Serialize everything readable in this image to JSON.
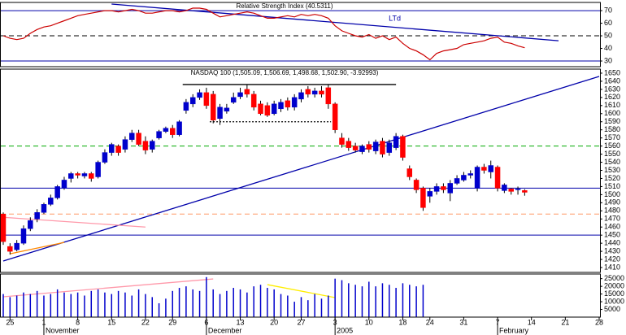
{
  "chart_data": [
    {
      "type": "line",
      "title": "Relative Strength Index (40.5311)",
      "color": "#cc0000",
      "values": [
        50,
        48,
        47,
        48,
        52,
        55,
        57,
        58,
        60,
        62,
        64,
        66,
        67,
        68,
        69,
        70,
        70,
        69,
        70,
        71,
        70,
        68,
        68,
        69,
        70,
        70,
        69,
        70,
        72,
        72,
        71,
        68,
        65,
        66,
        67,
        68,
        69,
        68,
        66,
        64,
        64,
        65,
        66,
        65,
        67,
        66,
        67,
        66,
        64,
        58,
        54,
        52,
        50,
        49,
        51,
        48,
        50,
        47,
        49,
        44,
        40,
        38,
        35,
        31,
        36,
        38,
        39,
        40,
        43,
        44,
        45,
        46,
        48,
        49,
        45,
        44,
        42,
        40.5311,
        null,
        null,
        null,
        null,
        null,
        null,
        null,
        null,
        null,
        null,
        null
      ],
      "ylim": [
        25.5,
        76.5
      ],
      "yticks": [
        30,
        40,
        50,
        60,
        70
      ],
      "hlines": [
        {
          "value": 70,
          "color": "#0000aa",
          "dash": "solid"
        },
        {
          "value": 50,
          "color": "#000000",
          "dash": "dashed"
        },
        {
          "value": 30,
          "color": "#0000aa",
          "dash": "solid"
        }
      ],
      "trendlines": [
        {
          "x": [
            16,
            82
          ],
          "y": [
            75.2,
            46.1
          ],
          "color": "#0000aa",
          "label": "LTd"
        }
      ]
    },
    {
      "type": "candlestick",
      "title": "NASDAQ 100 (1,505.09, 1,506.69, 1,498.68, 1,502.90, -3.92993)",
      "categories": [
        null,
        "25",
        null,
        null,
        null,
        null,
        "1",
        null,
        null,
        null,
        null,
        "8",
        null,
        null,
        null,
        null,
        "15",
        null,
        null,
        null,
        null,
        "22",
        null,
        null,
        null,
        "29",
        null,
        null,
        null,
        null,
        "6",
        null,
        null,
        null,
        null,
        "13",
        null,
        null,
        null,
        null,
        "20",
        null,
        null,
        null,
        "27",
        null,
        null,
        null,
        null,
        "3",
        null,
        null,
        null,
        null,
        "10",
        null,
        null,
        null,
        null,
        "18",
        null,
        null,
        null,
        "24",
        null,
        null,
        null,
        null,
        "31",
        null,
        null,
        null,
        null,
        "7",
        null,
        null,
        null,
        null,
        "14",
        null,
        null,
        null,
        null,
        "21",
        null,
        null,
        null,
        null,
        "28"
      ],
      "month_ticks": [
        {
          "value": 6,
          "label": "November"
        },
        {
          "value": 30,
          "label": "December"
        },
        {
          "value": 49,
          "label": "2005"
        },
        {
          "value": 73,
          "label": "February"
        }
      ],
      "open": [
        1476,
        1436,
        1432,
        1440,
        1458,
        1470,
        1478,
        1488,
        1496,
        1508,
        1520,
        1526,
        1523,
        1526,
        1522,
        1540,
        1552,
        1560,
        1556,
        1568,
        1576,
        1566,
        1556,
        1570,
        1578,
        1582,
        1574,
        1604,
        1612,
        1620,
        1626,
        1624,
        1594,
        1603,
        1614,
        1621,
        1630,
        1624,
        1612,
        1610,
        1600,
        1606,
        1616,
        1608,
        1618,
        1630,
        1624,
        1628,
        1632,
        1612,
        1570,
        1566,
        1560,
        1553,
        1562,
        1554,
        1566,
        1552,
        1558,
        1572,
        1532,
        1518,
        1508,
        1498,
        1504,
        1510,
        1502,
        1514,
        1518,
        1524,
        1508,
        1534,
        1528,
        1534,
        1505,
        1507,
        1506,
        1505.09,
        null,
        null,
        null,
        null,
        null,
        null,
        null,
        null,
        null,
        null,
        null
      ],
      "high": [
        1478,
        1440,
        1444,
        1462,
        1472,
        1482,
        1490,
        1500,
        1512,
        1522,
        1528,
        1528,
        1528,
        1528,
        1542,
        1556,
        1564,
        1562,
        1572,
        1580,
        1580,
        1572,
        1568,
        1580,
        1584,
        1586,
        1592,
        1618,
        1624,
        1630,
        1632,
        1628,
        1612,
        1612,
        1626,
        1632,
        1636,
        1628,
        1616,
        1614,
        1616,
        1618,
        1620,
        1624,
        1630,
        1634,
        1632,
        1634,
        1636,
        1614,
        1576,
        1570,
        1564,
        1562,
        1566,
        1568,
        1570,
        1568,
        1576,
        1574,
        1536,
        1520,
        1510,
        1508,
        1514,
        1514,
        1518,
        1524,
        1528,
        1530,
        1536,
        1538,
        1542,
        1536,
        1514,
        1508,
        1510,
        1506.69,
        null,
        null,
        null,
        null,
        null,
        null,
        null,
        null,
        null,
        null,
        null
      ],
      "low": [
        1438,
        1426,
        1430,
        1438,
        1455,
        1466,
        1476,
        1486,
        1494,
        1506,
        1515,
        1520,
        1520,
        1516,
        1520,
        1538,
        1548,
        1548,
        1552,
        1565,
        1560,
        1550,
        1552,
        1568,
        1576,
        1570,
        1572,
        1600,
        1608,
        1617,
        1606,
        1588,
        1586,
        1600,
        1612,
        1618,
        1620,
        1604,
        1598,
        1596,
        1598,
        1602,
        1604,
        1604,
        1614,
        1620,
        1620,
        1620,
        1606,
        1576,
        1558,
        1554,
        1552,
        1550,
        1552,
        1550,
        1546,
        1548,
        1555,
        1542,
        1518,
        1502,
        1480,
        1490,
        1500,
        1502,
        1492,
        1512,
        1516,
        1520,
        1504,
        1526,
        1520,
        1504,
        1502,
        1500,
        1500,
        1498.68,
        null,
        null,
        null,
        null,
        null,
        null,
        null,
        null,
        null,
        null,
        null
      ],
      "close": [
        1442,
        1430,
        1440,
        1458,
        1468,
        1478,
        1488,
        1496,
        1510,
        1518,
        1526,
        1524,
        1526,
        1520,
        1540,
        1552,
        1562,
        1552,
        1568,
        1576,
        1562,
        1555,
        1566,
        1578,
        1582,
        1574,
        1590,
        1614,
        1620,
        1626,
        1610,
        1592,
        1608,
        1607,
        1620,
        1626,
        1624,
        1608,
        1600,
        1598,
        1612,
        1614,
        1608,
        1620,
        1626,
        1624,
        1628,
        1624,
        1612,
        1580,
        1562,
        1558,
        1555,
        1560,
        1556,
        1565,
        1550,
        1564,
        1572,
        1546,
        1522,
        1506,
        1484,
        1504,
        1510,
        1506,
        1514,
        1520,
        1524,
        1526,
        1534,
        1530,
        1536,
        1508,
        1512,
        1504,
        1507,
        1502.9,
        null,
        null,
        null,
        null,
        null,
        null,
        null,
        null,
        null,
        null,
        null
      ],
      "up_color": "#0000cc",
      "down_color": "#ff0000",
      "ylim": [
        1404,
        1655
      ],
      "yticks": [
        1410,
        1420,
        1430,
        1440,
        1450,
        1460,
        1470,
        1480,
        1490,
        1500,
        1510,
        1520,
        1530,
        1540,
        1550,
        1560,
        1570,
        1580,
        1590,
        1600,
        1610,
        1620,
        1630,
        1640,
        1650
      ],
      "hlines": [
        {
          "value": 1560,
          "color": "#00aa00",
          "dash": "dashed"
        },
        {
          "value": 1508,
          "color": "#0000aa",
          "dash": "solid"
        },
        {
          "value": 1476,
          "color": "#ff9966",
          "dash": "dashed"
        },
        {
          "value": 1450,
          "color": "#0000aa",
          "dash": "solid"
        }
      ],
      "trendlines": [
        {
          "x": [
            0,
            88
          ],
          "y": [
            1418,
            1646
          ],
          "color": "#0000aa",
          "dash": "solid"
        },
        {
          "x": [
            26.5,
            58
          ],
          "y": [
            1636,
            1636
          ],
          "color": "#000000",
          "dash": "solid"
        },
        {
          "x": [
            30.5,
            48.4
          ],
          "y": [
            1590,
            1590
          ],
          "color": "#000000",
          "dash": "dotted"
        },
        {
          "x": [
            0,
            21
          ],
          "y": [
            1472,
            1460
          ],
          "color": "#ff99aa",
          "dash": "solid"
        },
        {
          "x": [
            1,
            9
          ],
          "y": [
            1427,
            1441
          ],
          "color": "#ff8800",
          "dash": "solid"
        }
      ]
    },
    {
      "type": "bar",
      "color": "#0000cc",
      "values": [
        15000,
        13000,
        14000,
        16000,
        15000,
        17000,
        14000,
        15000,
        18000,
        16000,
        15000,
        16000,
        14000,
        17000,
        18000,
        16000,
        15000,
        17000,
        16000,
        14000,
        18000,
        15000,
        13000,
        9000,
        12000,
        17000,
        19000,
        20000,
        18000,
        17000,
        26000,
        18000,
        15000,
        17000,
        19000,
        18000,
        16000,
        20000,
        21000,
        19000,
        18000,
        15000,
        14000,
        10000,
        13000,
        11000,
        15000,
        12000,
        14000,
        25000,
        24000,
        22000,
        21000,
        20000,
        23000,
        20000,
        22000,
        21000,
        19000,
        22000,
        21000,
        20000,
        21000,
        null,
        null,
        null,
        null,
        null,
        null,
        null,
        null,
        null,
        null,
        null,
        null,
        null,
        null,
        null,
        null,
        null,
        null,
        null,
        null,
        null,
        null,
        null,
        null,
        null,
        null
      ],
      "ylim": [
        0,
        28000
      ],
      "yticks": [
        5000,
        10000,
        15000,
        20000,
        25000
      ],
      "trendlines": [
        {
          "x": [
            0,
            31
          ],
          "y": [
            13200,
            24800
          ],
          "color": "#ff99aa",
          "dash": "solid"
        },
        {
          "x": [
            39,
            49
          ],
          "y": [
            21100,
            12700
          ],
          "color": "#ffee00",
          "dash": "solid"
        }
      ]
    }
  ]
}
